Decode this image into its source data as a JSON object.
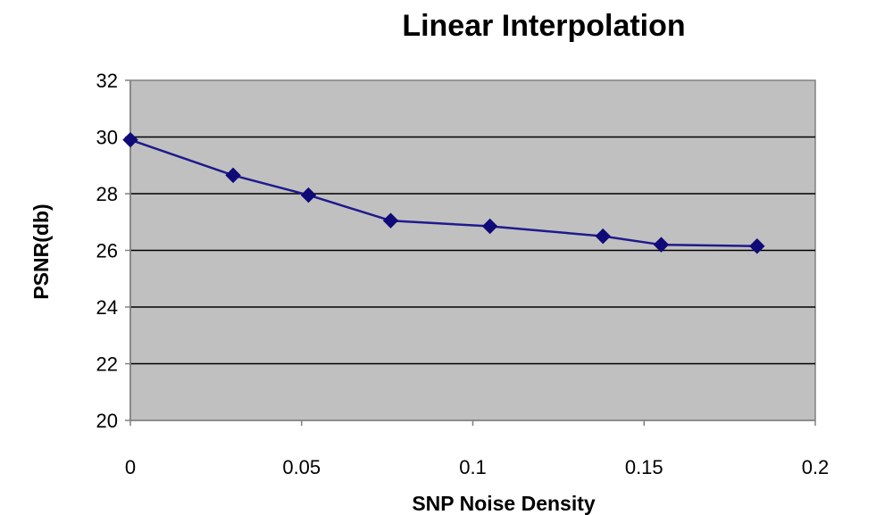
{
  "chart_data": {
    "type": "line",
    "title": "Linear Interpolation",
    "xlabel": "SNP Noise Density",
    "ylabel": "PSNR(db)",
    "xlim": [
      0,
      0.2
    ],
    "ylim": [
      20,
      32
    ],
    "xticks": [
      0,
      0.05,
      0.1,
      0.15,
      0.2
    ],
    "xtick_labels": [
      "0",
      "0.05",
      "0.1",
      "0.15",
      "0.2"
    ],
    "yticks": [
      20,
      22,
      24,
      26,
      28,
      30,
      32
    ],
    "ytick_labels": [
      "20",
      "22",
      "24",
      "26",
      "28",
      "30",
      "32"
    ],
    "grid": "horizontal",
    "legend": "none",
    "series": [
      {
        "x": [
          0,
          0.03,
          0.052,
          0.076,
          0.105,
          0.138,
          0.155,
          0.183
        ],
        "y": [
          29.9,
          28.65,
          27.95,
          27.05,
          26.85,
          26.5,
          26.2,
          26.15
        ]
      }
    ],
    "colors": {
      "plot_background": "#c0c0c0",
      "line": "#1f1a8c",
      "marker": "#0f0a78",
      "grid": "#000000",
      "axis": "#808080"
    }
  }
}
